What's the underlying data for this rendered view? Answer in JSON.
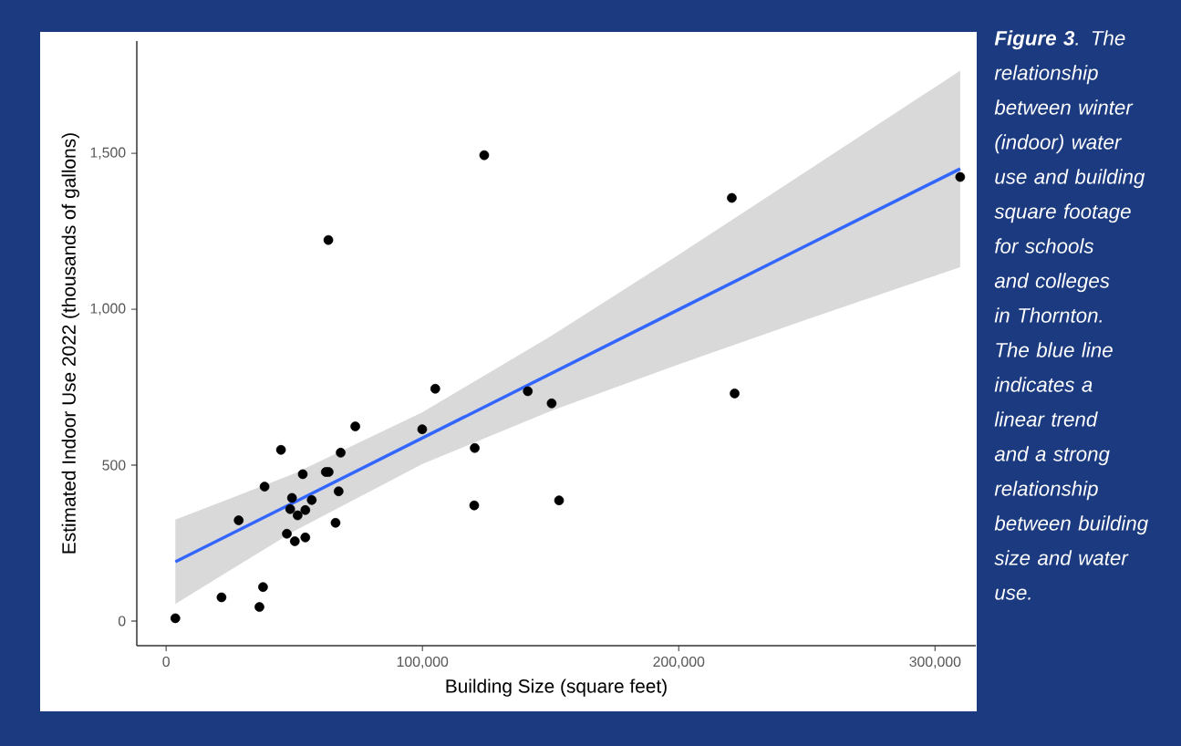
{
  "chart_data": {
    "type": "scatter",
    "xlabel": "Building Size (square feet)",
    "ylabel": "Estimated Indoor Use 2022 (thousands of gallons)",
    "xlim": [
      -11450,
      315900
    ],
    "ylim": [
      -79,
      1860
    ],
    "xticks": [
      {
        "value": 0,
        "label": "0"
      },
      {
        "value": 100000,
        "label": "100,000"
      },
      {
        "value": 200000,
        "label": "200,000"
      },
      {
        "value": 300000,
        "label": "300,000"
      }
    ],
    "yticks": [
      {
        "value": 0,
        "label": "0"
      },
      {
        "value": 500,
        "label": "500"
      },
      {
        "value": 1000,
        "label": "1,000"
      },
      {
        "value": 1500,
        "label": "1,500"
      }
    ],
    "grid": false,
    "series": [
      {
        "marker": "circle",
        "color": "#000000",
        "x": [
          3600,
          21600,
          36400,
          37800,
          28300,
          38400,
          44800,
          47100,
          50200,
          54300,
          49100,
          48400,
          51300,
          54300,
          56800,
          53300,
          62300,
          63400,
          67300,
          66100,
          68100,
          73800,
          99900,
          124100,
          220700,
          309800,
          105000,
          141100,
          150400,
          221800,
          120400,
          120200,
          153300,
          63300
        ],
        "values": [
          9,
          76,
          45,
          109,
          323,
          431,
          549,
          280,
          256,
          268,
          395,
          359,
          339,
          356,
          388,
          471,
          478,
          478,
          416,
          315,
          540,
          624,
          615,
          1494,
          1357,
          1424,
          745,
          737,
          698,
          730,
          555,
          371,
          387,
          1222
        ]
      },
      {
        "type": "line",
        "marker": "none",
        "line_style": "solid",
        "color": "#3366ff",
        "x": [
          3600,
          50000,
          100000,
          150000,
          200000,
          250000,
          309800
        ],
        "values": [
          190,
          381,
          587,
          793,
          999,
          1205,
          1450
        ],
        "lower": [
          55,
          289,
          504,
          673,
          823,
          967,
          1135
        ],
        "upper": [
          325,
          473,
          670,
          913,
          1175,
          1443,
          1765
        ]
      }
    ],
    "annotations": [
      "**Figure 3**. The relationship between winter (indoor) water use and building square footage for schools and colleges in Thornton. The blue line indicates a linear trend and a strong relationship between building size and water use."
    ]
  }
}
